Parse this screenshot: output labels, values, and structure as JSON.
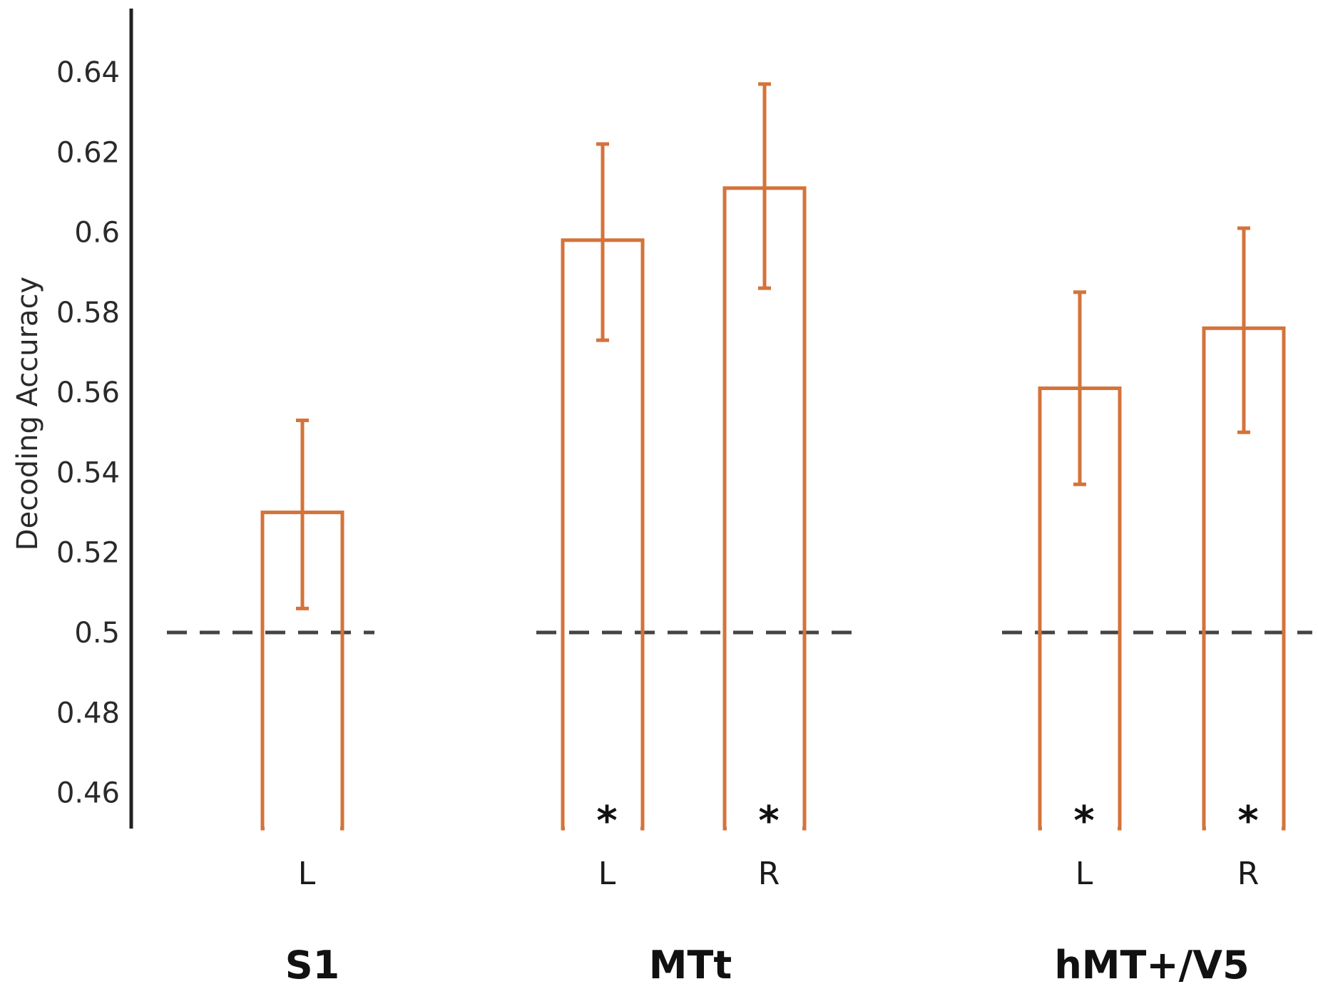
{
  "chart_data": {
    "type": "bar",
    "title": "",
    "xlabel": "",
    "ylabel": "Decoding Accuracy",
    "ylim": [
      0.452,
      0.655
    ],
    "yticks": [
      "0.46",
      "0.48",
      "0.5",
      "0.52",
      "0.54",
      "0.56",
      "0.58",
      "0.6",
      "0.62",
      "0.64"
    ],
    "chance_level": 0.5,
    "grid": false,
    "bar_style": "outline",
    "bar_color": "#d4733a",
    "groups": [
      {
        "label": "S1",
        "bars": [
          {
            "label": "L",
            "value": 0.53,
            "error_low": 0.506,
            "error_high": 0.553,
            "significant": false
          }
        ]
      },
      {
        "label": "MTt",
        "bars": [
          {
            "label": "L",
            "value": 0.598,
            "error_low": 0.573,
            "error_high": 0.622,
            "significant": true
          },
          {
            "label": "R",
            "value": 0.611,
            "error_low": 0.586,
            "error_high": 0.637,
            "significant": true
          }
        ]
      },
      {
        "label": "hMT+/V5",
        "bars": [
          {
            "label": "L",
            "value": 0.561,
            "error_low": 0.537,
            "error_high": 0.585,
            "significant": true
          },
          {
            "label": "R",
            "value": 0.576,
            "error_low": 0.55,
            "error_high": 0.601,
            "significant": true
          }
        ]
      }
    ],
    "significance_marker": "*"
  }
}
